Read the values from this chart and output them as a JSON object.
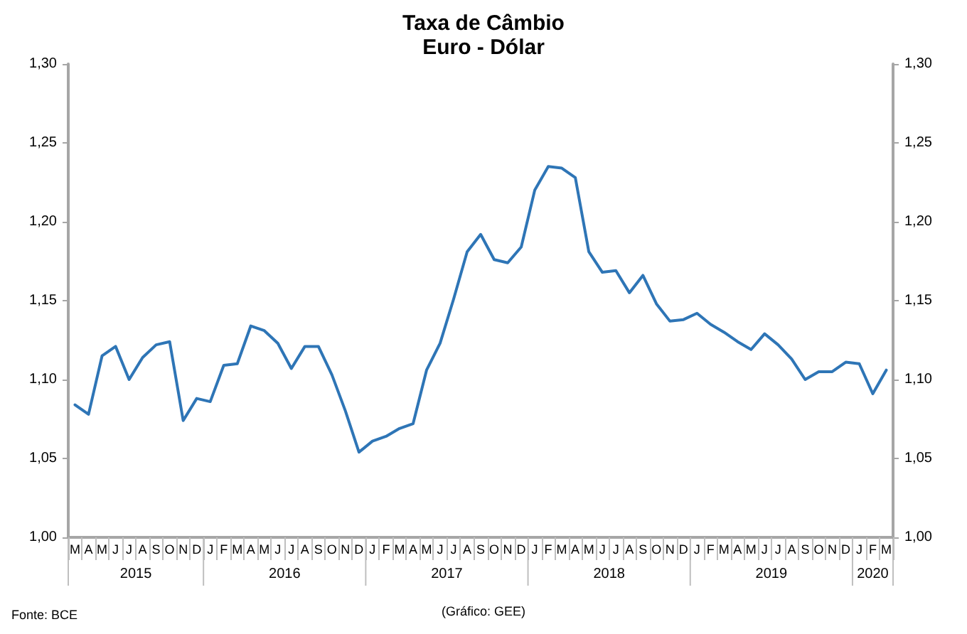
{
  "chart_data": {
    "type": "line",
    "title": "Taxa de Câmbio",
    "subtitle": "Euro - Dólar",
    "categories": [
      "M",
      "A",
      "M",
      "J",
      "J",
      "A",
      "S",
      "O",
      "N",
      "D",
      "J",
      "F",
      "M",
      "A",
      "M",
      "J",
      "J",
      "A",
      "S",
      "O",
      "N",
      "D",
      "J",
      "F",
      "M",
      "A",
      "M",
      "J",
      "J",
      "A",
      "S",
      "O",
      "N",
      "D",
      "J",
      "F",
      "M",
      "A",
      "M",
      "J",
      "J",
      "A",
      "S",
      "O",
      "N",
      "D",
      "J",
      "F",
      "M",
      "A",
      "M",
      "J",
      "J",
      "A",
      "S",
      "O",
      "N",
      "D",
      "J",
      "F",
      "M"
    ],
    "series": [
      {
        "color": "#2e75b6",
        "values": [
          1.084,
          1.078,
          1.115,
          1.121,
          1.1,
          1.114,
          1.122,
          1.124,
          1.074,
          1.088,
          1.086,
          1.109,
          1.11,
          1.134,
          1.131,
          1.123,
          1.107,
          1.121,
          1.121,
          1.103,
          1.08,
          1.054,
          1.061,
          1.064,
          1.069,
          1.072,
          1.106,
          1.123,
          1.151,
          1.181,
          1.192,
          1.176,
          1.174,
          1.184,
          1.22,
          1.235,
          1.234,
          1.228,
          1.181,
          1.168,
          1.169,
          1.155,
          1.166,
          1.148,
          1.137,
          1.138,
          1.142,
          1.135,
          1.13,
          1.124,
          1.119,
          1.129,
          1.122,
          1.113,
          1.1,
          1.105,
          1.105,
          1.111,
          1.11,
          1.091,
          1.106
        ]
      }
    ],
    "ylim": [
      1.0,
      1.3
    ],
    "yticks": [
      {
        "value": 1.0,
        "label": "1,00"
      },
      {
        "value": 1.05,
        "label": "1,05"
      },
      {
        "value": 1.1,
        "label": "1,10"
      },
      {
        "value": 1.15,
        "label": "1,15"
      },
      {
        "value": 1.2,
        "label": "1,20"
      },
      {
        "value": 1.25,
        "label": "1,25"
      },
      {
        "value": 1.3,
        "label": "1,30"
      }
    ],
    "y2lim": [
      1.0,
      1.3
    ],
    "y2ticks": [
      {
        "value": 1.0,
        "label": "1,00"
      },
      {
        "value": 1.05,
        "label": "1,05"
      },
      {
        "value": 1.1,
        "label": "1,10"
      },
      {
        "value": 1.15,
        "label": "1,15"
      },
      {
        "value": 1.2,
        "label": "1,20"
      },
      {
        "value": 1.25,
        "label": "1,25"
      },
      {
        "value": 1.3,
        "label": "1,30"
      }
    ],
    "annotations": [
      "2015",
      "2016",
      "2017",
      "2018",
      "2019",
      "2020",
      "Fonte: BCE",
      "(Gráfico: GEE)"
    ],
    "grid": false,
    "marker": "none",
    "line_style": "solid"
  }
}
